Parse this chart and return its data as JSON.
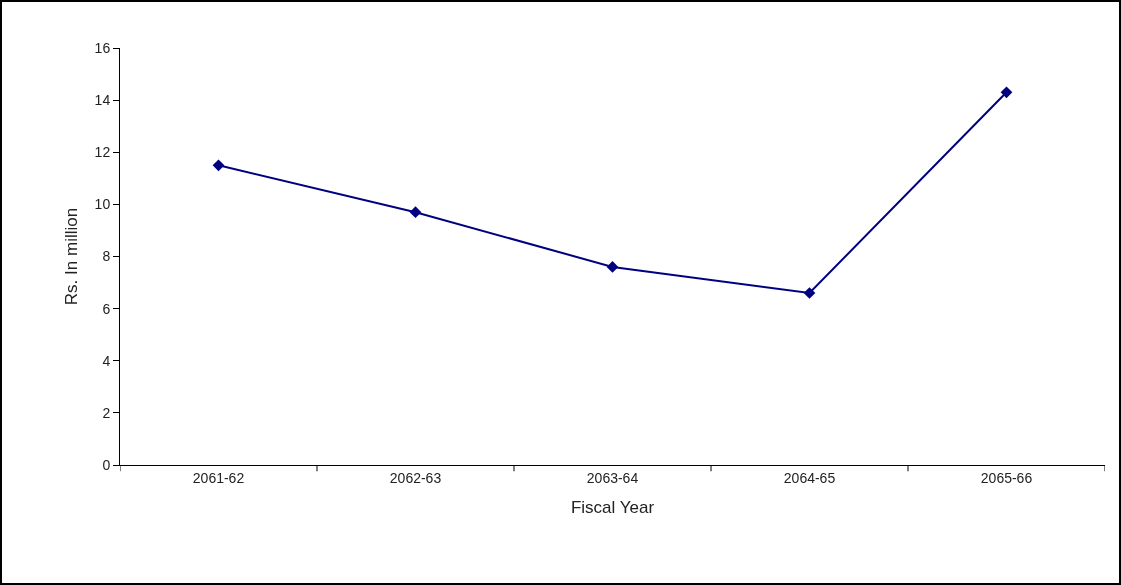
{
  "chart_data": {
    "type": "line",
    "xlabel": "Fiscal Year",
    "ylabel": "Rs. In million",
    "categories": [
      "2061-62",
      "2062-63",
      "2063-64",
      "2064-65",
      "2065-66"
    ],
    "series": [
      {
        "color": "#000080",
        "values": [
          11.5,
          9.7,
          7.6,
          6.6,
          14.3
        ]
      }
    ],
    "ylim": [
      0,
      16
    ],
    "yticks": [
      0,
      2,
      4,
      6,
      8,
      10,
      12,
      14,
      16
    ],
    "grid": false,
    "marker": "diamond",
    "line_style": "solid"
  }
}
